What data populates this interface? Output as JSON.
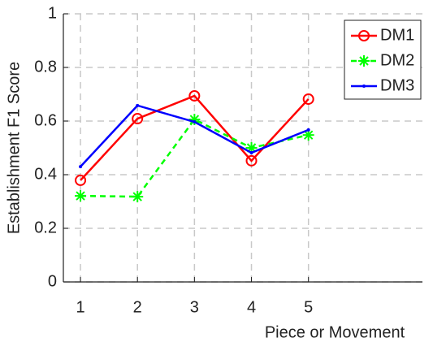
{
  "chart_data": {
    "type": "line",
    "x_label": "Piece or Movement",
    "y_label": "Establishment F1 Score",
    "x": [
      1,
      2,
      3,
      4,
      5
    ],
    "series": [
      {
        "name": "DM1",
        "color": "#ff0000",
        "marker": "circle",
        "dash": false,
        "values": [
          0.379,
          0.609,
          0.694,
          0.452,
          0.682
        ]
      },
      {
        "name": "DM2",
        "color": "#00ff00",
        "marker": "asterisk",
        "dash": true,
        "values": [
          0.321,
          0.318,
          0.606,
          0.5,
          0.548
        ]
      },
      {
        "name": "DM3",
        "color": "#0000ff",
        "marker": "point",
        "dash": false,
        "values": [
          0.43,
          0.658,
          0.597,
          0.482,
          0.567
        ]
      }
    ],
    "xlim": [
      0.7,
      7
    ],
    "xticks": [
      1,
      2,
      3,
      4,
      5
    ],
    "ylim": [
      0,
      1
    ],
    "yticks": [
      0,
      0.2,
      0.4,
      0.6,
      0.8,
      1
    ],
    "grid": true,
    "legend": "upper-right"
  }
}
